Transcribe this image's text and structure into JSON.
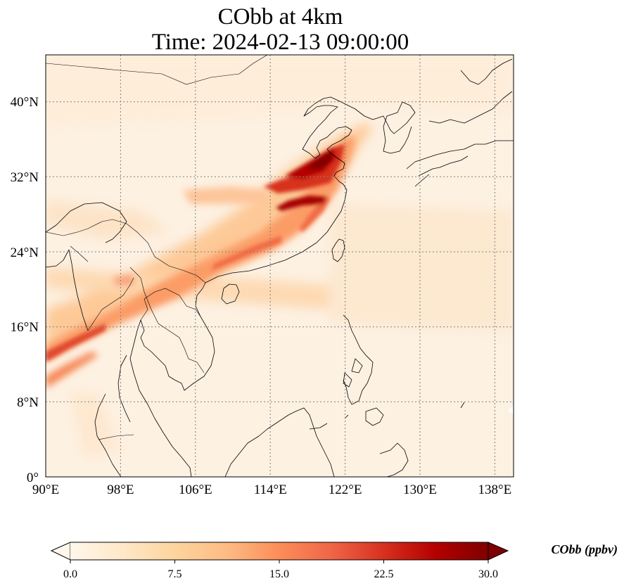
{
  "title": {
    "line1": "CObb at 4km",
    "line2": "Time: 2024-02-13 09:00:00"
  },
  "map": {
    "lon_range": [
      90,
      140
    ],
    "lat_range": [
      0,
      45
    ],
    "lon_ticks": [
      "90°E",
      "98°E",
      "106°E",
      "114°E",
      "122°E",
      "130°E",
      "138°E"
    ],
    "lat_ticks": [
      "0°",
      "8°N",
      "16°N",
      "24°N",
      "32°N",
      "40°N"
    ],
    "gridlines": true,
    "features": [
      "coastlines",
      "country-borders"
    ]
  },
  "colorbar": {
    "label": "CObb (ppbv)",
    "colormap": "OrRd",
    "extend": "both",
    "ticks": [
      "0.0",
      "7.5",
      "15.0",
      "22.5",
      "30.0"
    ],
    "range": [
      0,
      30
    ],
    "colors": [
      "#fff7ec",
      "#fee8c8",
      "#fdd49e",
      "#fdbb84",
      "#fc8d59",
      "#ef6548",
      "#d7301f",
      "#b30000",
      "#7f0000"
    ]
  },
  "chart_data": {
    "type": "heatmap",
    "variable": "CObb",
    "units": "ppbv",
    "level": "4km",
    "time": "2024-02-13 09:00:00",
    "plumes": [
      {
        "lon": [
          90,
          92,
          95,
          98,
          102,
          106,
          110,
          114,
          118,
          120,
          122,
          124
        ],
        "lat": [
          12.5,
          13.5,
          15,
          16.5,
          18,
          19.5,
          21,
          23,
          26,
          28,
          31,
          35
        ],
        "approx_peak_ppbv": 26
      },
      {
        "lon": [
          114,
          116,
          118,
          120,
          121
        ],
        "lat": [
          30.5,
          31.5,
          32.5,
          33,
          34
        ],
        "approx_peak_ppbv": 28
      },
      {
        "lon": [
          115,
          117,
          119
        ],
        "lat": [
          29,
          29.2,
          29.6
        ],
        "approx_peak_ppbv": 30
      }
    ]
  }
}
